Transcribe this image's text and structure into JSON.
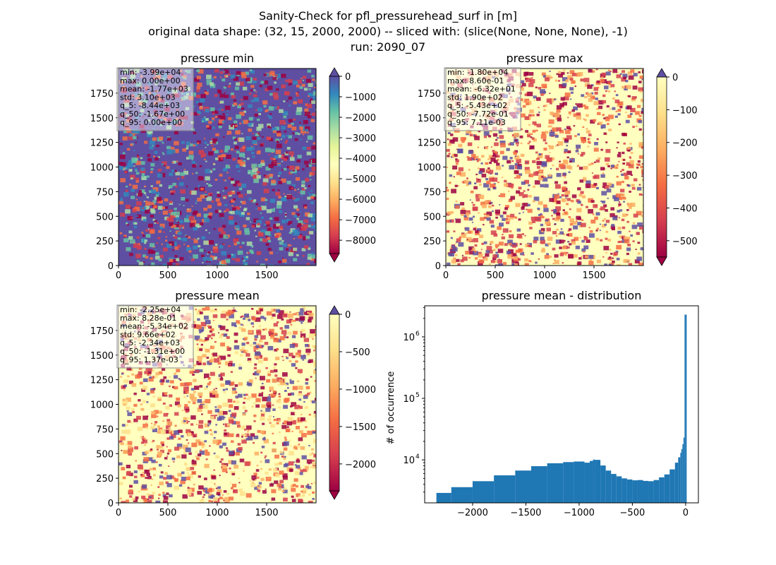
{
  "suptitle": {
    "line1": "Sanity-Check for pfl_pressurehead_surf in [m]",
    "line2": "original data shape: (32, 15, 2000, 2000) -- sliced with: (slice(None, None, None), -1)",
    "line3": "run: 2090_07"
  },
  "chart_data": [
    {
      "type": "heatmap",
      "title": "pressure min",
      "xticks": [
        "0",
        "500",
        "1000",
        "1500"
      ],
      "yticks": [
        "0",
        "250",
        "500",
        "750",
        "1000",
        "1250",
        "1500",
        "1750"
      ],
      "xlim": [
        0,
        2000
      ],
      "ylim": [
        0,
        2000
      ],
      "colormap": "Spectral",
      "colorbar": {
        "ticks": [
          "0",
          "−1000",
          "−2000",
          "−3000",
          "−4000",
          "−5000",
          "−6000",
          "−7000",
          "−8000"
        ],
        "range": [
          -8650,
          0
        ],
        "extend": "both"
      },
      "stats": [
        "min: -3.99e+04",
        "max: 0.00e+00",
        "mean: -1.77e+03",
        "std: 3.10e+03",
        "q_5: -8.44e+03",
        "q_50: -1.67e+00",
        "q_95: 0.00e+00"
      ]
    },
    {
      "type": "heatmap",
      "title": "pressure max",
      "xticks": [
        "0",
        "500",
        "1000",
        "1500"
      ],
      "yticks": [
        "0",
        "250",
        "500",
        "750",
        "1000",
        "1250",
        "1500",
        "1750"
      ],
      "xlim": [
        0,
        2000
      ],
      "ylim": [
        0,
        2000
      ],
      "colormap": "Spectral",
      "colorbar": {
        "ticks": [
          "0",
          "−100",
          "−200",
          "−300",
          "−400",
          "−500"
        ],
        "range": [
          -550,
          0
        ],
        "extend": "both"
      },
      "stats": [
        "min: -1.80e+04",
        "max: 8.60e-01",
        "mean: -6.32e+01",
        "std: 1.90e+02",
        "q_5: -5.43e+02",
        "q_50: -7.72e-01",
        "q_95: 7.11e-03"
      ]
    },
    {
      "type": "heatmap",
      "title": "pressure mean",
      "xticks": [
        "0",
        "500",
        "1000",
        "1500"
      ],
      "yticks": [
        "0",
        "250",
        "500",
        "750",
        "1000",
        "1250",
        "1500",
        "1750"
      ],
      "xlim": [
        0,
        2000
      ],
      "ylim": [
        0,
        2000
      ],
      "colormap": "Spectral",
      "colorbar": {
        "ticks": [
          "0",
          "−500",
          "−1000",
          "−1500",
          "−2000"
        ],
        "range": [
          -2360,
          0
        ],
        "extend": "both"
      },
      "stats": [
        "min: -2.25e+04",
        "max: 8.28e-01",
        "mean: -5.34e+02",
        "std: 9.66e+02",
        "q_5: -2.34e+03",
        "q_50: -1.31e+00",
        "q_95: 1.37e-03"
      ]
    },
    {
      "type": "bar",
      "title": "pressure mean - distribution",
      "ylabel": "# of occurrence",
      "yscale": "log",
      "xlim": [
        -2450,
        120
      ],
      "ylim": [
        2000,
        3200000
      ],
      "xticks": [
        -2000,
        -1500,
        -1000,
        -500,
        0
      ],
      "xticklabels": [
        "−2000",
        "−1500",
        "−1000",
        "−500",
        "0"
      ],
      "yticks": [
        10000,
        100000,
        1000000
      ],
      "yticklabels": [
        "10",
        "10",
        "10"
      ],
      "ytick_exponents": [
        "4",
        "5",
        "6"
      ],
      "bar_color": "#1f77b4",
      "bin_width": 10,
      "bins_x": [
        -2340,
        -2200,
        -2000,
        -1800,
        -1600,
        -1450,
        -1300,
        -1150,
        -1050,
        -950,
        -900,
        -870,
        -850,
        -800,
        -750,
        -700,
        -650,
        -600,
        -550,
        -500,
        -450,
        -400,
        -350,
        -300,
        -250,
        -200,
        -150,
        -100,
        -70,
        -50,
        -40,
        -30,
        -20,
        -10,
        0
      ],
      "bins_y": [
        2900,
        3600,
        4500,
        5600,
        6700,
        7900,
        8800,
        9200,
        9400,
        9000,
        9600,
        10100,
        10000,
        8100,
        6700,
        5900,
        5400,
        5000,
        4800,
        4650,
        4700,
        4550,
        4500,
        4700,
        5200,
        5800,
        7000,
        9000,
        11000,
        13000,
        15000,
        18000,
        23000,
        2300000,
        2300000
      ]
    }
  ]
}
